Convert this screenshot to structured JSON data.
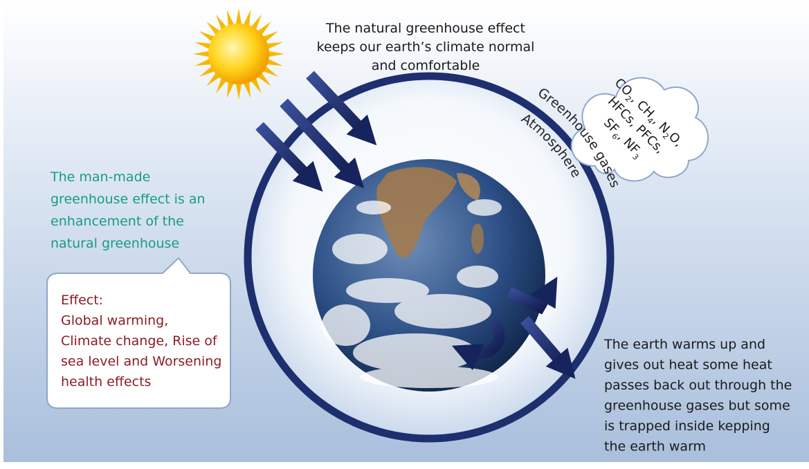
{
  "top_text": {
    "lines": [
      "The natural greenhouse effect",
      "keeps our earth’s climate normal",
      "and comfortable"
    ]
  },
  "left_text": {
    "lines": [
      "The man-made",
      "greenhouse effect is an",
      "enhancement of the",
      "natural greenhouse"
    ]
  },
  "effect_box": {
    "lines": [
      "Effect:",
      "Global warming,",
      "Climate change, Rise of",
      "sea level and Worsening",
      "health effects"
    ]
  },
  "right_text": {
    "lines": [
      "The earth warms up and",
      "gives out heat some heat",
      "passes back out through the",
      "greenhouse gases but some",
      "is trapped inside kepping",
      "the earth warm"
    ]
  },
  "cloud": {
    "lines": [
      [
        "CO",
        "2",
        ", CH",
        "4",
        ", N",
        "2",
        "O,"
      ],
      [
        "HFCs, PFCs,"
      ],
      [
        "SF",
        "6",
        ", NF",
        "3"
      ]
    ]
  },
  "labels": {
    "greenhouse_gases": "Greenhouse gases",
    "atmosphere": "Atmosphere"
  }
}
